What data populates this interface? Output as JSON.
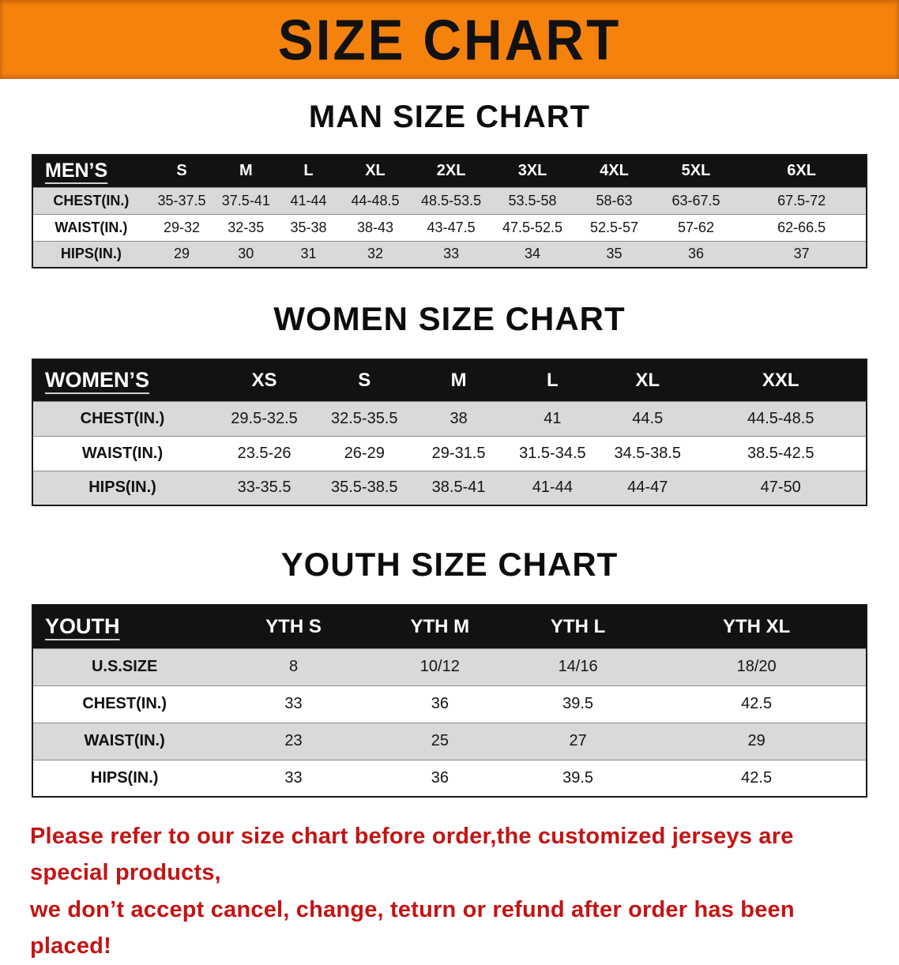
{
  "colors": {
    "banner-bg": "#F5820D",
    "banner-text": "#111111",
    "table-header-bg": "#121212",
    "table-header-text": "#FFFFFF",
    "row-stripe": "#D9D9D9",
    "footer-text": "#C41414"
  },
  "banner": {
    "title": "SIZE CHART"
  },
  "sections": [
    {
      "heading": "MAN SIZE CHART",
      "table": {
        "header": [
          "MEN’S",
          "S",
          "M",
          "L",
          "XL",
          "2XL",
          "3XL",
          "4XL",
          "5XL",
          "6XL"
        ],
        "rows": [
          {
            "label": "CHEST(IN.)",
            "values": [
              "35-37.5",
              "37.5-41",
              "41-44",
              "44-48.5",
              "48.5-53.5",
              "53.5-58",
              "58-63",
              "63-67.5",
              "67.5-72"
            ]
          },
          {
            "label": "WAIST(IN.)",
            "values": [
              "29-32",
              "32-35",
              "35-38",
              "38-43",
              "43-47.5",
              "47.5-52.5",
              "52.5-57",
              "57-62",
              "62-66.5"
            ]
          },
          {
            "label": "HIPS(IN.)",
            "values": [
              "29",
              "30",
              "31",
              "32",
              "33",
              "34",
              "35",
              "36",
              "37"
            ]
          }
        ]
      }
    },
    {
      "heading": "WOMEN SIZE CHART",
      "table": {
        "header": [
          "WOMEN’S",
          "XS",
          "S",
          "M",
          "L",
          "XL",
          "XXL"
        ],
        "rows": [
          {
            "label": "CHEST(IN.)",
            "values": [
              "29.5-32.5",
              "32.5-35.5",
              "38",
              "41",
              "44.5",
              "44.5-48.5"
            ]
          },
          {
            "label": "WAIST(IN.)",
            "values": [
              "23.5-26",
              "26-29",
              "29-31.5",
              "31.5-34.5",
              "34.5-38.5",
              "38.5-42.5"
            ]
          },
          {
            "label": "HIPS(IN.)",
            "values": [
              "33-35.5",
              "35.5-38.5",
              "38.5-41",
              "41-44",
              "44-47",
              "47-50"
            ]
          }
        ]
      }
    },
    {
      "heading": "YOUTH SIZE CHART",
      "table": {
        "header": [
          "YOUTH",
          "YTH S",
          "YTH M",
          "YTH L",
          "YTH XL"
        ],
        "rows": [
          {
            "label": "U.S.SIZE",
            "values": [
              "8",
              "10/12",
              "14/16",
              "18/20"
            ]
          },
          {
            "label": "CHEST(IN.)",
            "values": [
              "33",
              "36",
              "39.5",
              "42.5"
            ]
          },
          {
            "label": "WAIST(IN.)",
            "values": [
              "23",
              "25",
              "27",
              "29"
            ]
          },
          {
            "label": "HIPS(IN.)",
            "values": [
              "33",
              "36",
              "39.5",
              "42.5"
            ]
          }
        ]
      }
    }
  ],
  "footer": {
    "line1": "Please refer to our size chart before order,the customized jerseys are special products,",
    "line2": "we don’t accept cancel, change, teturn or refund after order has been placed!"
  }
}
